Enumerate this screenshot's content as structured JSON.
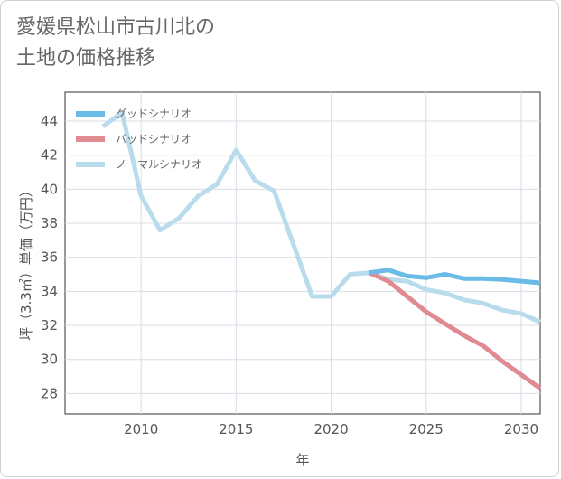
{
  "title": "愛媛県松山市古川北の\n土地の価格推移",
  "chart_data": {
    "type": "line",
    "title": "愛媛県松山市古川北の土地の価格推移",
    "xlabel": "年",
    "ylabel": "坪（3.3㎡）単価（万円）",
    "xlim": [
      2006,
      2031
    ],
    "ylim": [
      26.8,
      45.7
    ],
    "xticks": [
      2010,
      2015,
      2020,
      2025,
      2030
    ],
    "yticks": [
      28,
      30,
      32,
      34,
      36,
      38,
      40,
      42,
      44
    ],
    "legend_position": "top-left",
    "series": [
      {
        "name": "グッドシナリオ",
        "color": "#6bbbe8",
        "x": [
          2022,
          2023,
          2024,
          2025,
          2026,
          2027,
          2028,
          2029,
          2030,
          2031
        ],
        "values": [
          35.1,
          35.25,
          34.9,
          34.8,
          35.0,
          34.75,
          34.75,
          34.7,
          34.6,
          34.5
        ]
      },
      {
        "name": "バッドシナリオ",
        "color": "#e08a92",
        "x": [
          2022,
          2023,
          2024,
          2025,
          2026,
          2027,
          2028,
          2029,
          2030,
          2031
        ],
        "values": [
          35.1,
          34.6,
          33.7,
          32.8,
          32.1,
          31.4,
          30.8,
          29.9,
          29.1,
          28.3
        ]
      },
      {
        "name": "ノーマルシナリオ",
        "color": "#b8dcec",
        "x": [
          2008,
          2009,
          2010,
          2011,
          2012,
          2013,
          2014,
          2015,
          2016,
          2017,
          2018,
          2019,
          2020,
          2021,
          2022,
          2023,
          2024,
          2025,
          2026,
          2027,
          2028,
          2029,
          2030,
          2031
        ],
        "values": [
          43.7,
          44.5,
          39.6,
          37.6,
          38.3,
          39.6,
          40.3,
          42.3,
          40.5,
          39.9,
          36.8,
          33.7,
          33.7,
          35.0,
          35.1,
          34.7,
          34.6,
          34.1,
          33.9,
          33.5,
          33.3,
          32.9,
          32.7,
          32.2
        ]
      }
    ]
  }
}
